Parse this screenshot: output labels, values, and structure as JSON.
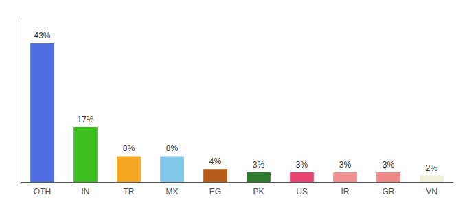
{
  "chart_data": {
    "type": "bar",
    "categories": [
      "OTH",
      "IN",
      "TR",
      "MX",
      "EG",
      "PK",
      "US",
      "IR",
      "GR",
      "VN"
    ],
    "values": [
      43,
      17,
      8,
      8,
      4,
      3,
      3,
      3,
      3,
      2
    ],
    "value_labels": [
      "43%",
      "17%",
      "8%",
      "8%",
      "4%",
      "3%",
      "3%",
      "3%",
      "3%",
      "2%"
    ],
    "colors": [
      "#4d6de0",
      "#3dbf1e",
      "#f5a623",
      "#82c8ea",
      "#b85c1a",
      "#2d7a2d",
      "#e8436e",
      "#f09090",
      "#f08888",
      "#f0f0d8"
    ],
    "ylim": [
      0,
      50
    ],
    "data_labels": true,
    "tick_labels": "x",
    "grid": false
  }
}
